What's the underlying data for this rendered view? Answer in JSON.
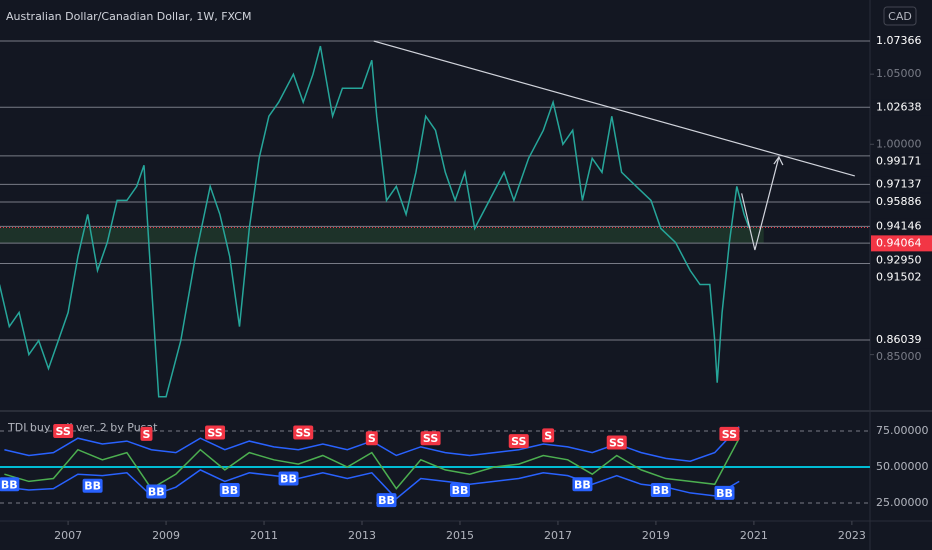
{
  "chart_data": [
    {
      "type": "line",
      "title": "Australian Dollar/Canadian Dollar, 1W, FXCM",
      "currency": "CAD",
      "color": "#26a69a",
      "x": [
        2005.6,
        2005.8,
        2006.0,
        2006.2,
        2006.4,
        2006.6,
        2006.8,
        2007.0,
        2007.2,
        2007.4,
        2007.6,
        2007.8,
        2008.0,
        2008.2,
        2008.4,
        2008.55,
        2008.7,
        2008.85,
        2009.0,
        2009.3,
        2009.6,
        2009.9,
        2010.1,
        2010.3,
        2010.5,
        2010.7,
        2010.9,
        2011.1,
        2011.3,
        2011.6,
        2011.8,
        2012.0,
        2012.15,
        2012.4,
        2012.6,
        2012.8,
        2013.0,
        2013.2,
        2013.3,
        2013.5,
        2013.7,
        2013.9,
        2014.1,
        2014.3,
        2014.5,
        2014.7,
        2014.9,
        2015.1,
        2015.3,
        2015.6,
        2015.9,
        2016.1,
        2016.4,
        2016.7,
        2016.9,
        2017.1,
        2017.3,
        2017.5,
        2017.7,
        2017.9,
        2018.1,
        2018.3,
        2018.6,
        2018.9,
        2019.1,
        2019.4,
        2019.7,
        2019.9,
        2020.1,
        2020.2,
        2020.25,
        2020.35,
        2020.5,
        2020.65,
        2020.8,
        2020.9
      ],
      "values": [
        0.9,
        0.87,
        0.88,
        0.85,
        0.86,
        0.84,
        0.86,
        0.88,
        0.92,
        0.95,
        0.91,
        0.93,
        0.96,
        0.96,
        0.97,
        0.985,
        0.9,
        0.82,
        0.82,
        0.86,
        0.92,
        0.97,
        0.95,
        0.92,
        0.87,
        0.94,
        0.99,
        1.02,
        1.03,
        1.05,
        1.03,
        1.05,
        1.07,
        1.02,
        1.04,
        1.04,
        1.04,
        1.06,
        1.02,
        0.96,
        0.97,
        0.95,
        0.98,
        1.02,
        1.01,
        0.98,
        0.96,
        0.98,
        0.94,
        0.96,
        0.98,
        0.96,
        0.99,
        1.01,
        1.03,
        1.0,
        1.01,
        0.96,
        0.99,
        0.98,
        1.02,
        0.98,
        0.97,
        0.96,
        0.94,
        0.93,
        0.91,
        0.9,
        0.9,
        0.86,
        0.83,
        0.88,
        0.93,
        0.97,
        0.95,
        0.94064
      ],
      "xlim": [
        2005.61,
        2023.37
      ],
      "xticks": [
        2007,
        2009,
        2011,
        2013,
        2015,
        2017,
        2019,
        2021,
        2023
      ],
      "ylim": [
        0.8105,
        1.1029
      ],
      "yticks": [
        {
          "value": 1.05,
          "label": "1.05000"
        },
        {
          "value": 1.0,
          "label": "1.00000"
        },
        {
          "value": 0.85,
          "label": "0.85000"
        }
      ],
      "levels": [
        1.07366,
        1.02638,
        0.99171,
        0.97137,
        0.95886,
        0.94146,
        {
          "value": 0.9295,
          "label": "0.92950"
        },
        0.91502,
        0.86039
      ],
      "current_price": {
        "value": 0.94064,
        "label": "0.94064",
        "color": "#f23645"
      },
      "zone": [
        0.9295,
        0.9406
      ],
      "trendline": {
        "x": [
          2013.24,
          2023.06
        ],
        "y": [
          1.0736,
          0.9774
        ]
      },
      "projection": {
        "x": [
          2020.75,
          2021.02,
          2021.51
        ],
        "y": [
          0.965,
          0.9246,
          0.9909
        ]
      }
    },
    {
      "type": "line",
      "title": "TDI buy sell ver. 2 by Pusat",
      "ylim": [
        13.2,
        88.2
      ],
      "yticks": [
        {
          "value": 75,
          "label": "75.00000"
        },
        {
          "value": 50,
          "label": "50.00000"
        },
        {
          "value": 25,
          "label": "25.00000"
        }
      ],
      "midline": {
        "value": 50,
        "color": "#00bcd4"
      },
      "x": [
        2005.7,
        2006.2,
        2006.7,
        2007.2,
        2007.7,
        2008.2,
        2008.7,
        2009.2,
        2009.7,
        2010.2,
        2010.7,
        2011.2,
        2011.7,
        2012.2,
        2012.7,
        2013.2,
        2013.7,
        2014.2,
        2014.7,
        2015.2,
        2015.7,
        2016.2,
        2016.7,
        2017.2,
        2017.7,
        2018.2,
        2018.7,
        2019.2,
        2019.7,
        2020.2,
        2020.7
      ],
      "series": [
        {
          "color": "#4caf50",
          "values": [
            45,
            40,
            42,
            62,
            55,
            60,
            35,
            45,
            62,
            48,
            60,
            55,
            52,
            58,
            50,
            60,
            35,
            55,
            48,
            45,
            50,
            52,
            58,
            55,
            45,
            58,
            48,
            42,
            40,
            38,
            70
          ]
        },
        {
          "color": "#2962ff",
          "values": [
            62,
            58,
            60,
            70,
            66,
            68,
            62,
            60,
            70,
            62,
            68,
            64,
            62,
            66,
            62,
            68,
            58,
            64,
            60,
            58,
            60,
            62,
            66,
            64,
            60,
            66,
            60,
            56,
            54,
            60,
            78
          ]
        },
        {
          "color": "#2962ff",
          "values": [
            36,
            34,
            35,
            45,
            44,
            46,
            30,
            36,
            48,
            40,
            46,
            44,
            42,
            46,
            42,
            46,
            28,
            42,
            40,
            38,
            40,
            42,
            46,
            44,
            38,
            44,
            38,
            36,
            32,
            30,
            40
          ]
        }
      ],
      "signals": [
        {
          "x": 2006.9,
          "y": 75,
          "label": "SS"
        },
        {
          "x": 2008.6,
          "y": 73,
          "label": "S"
        },
        {
          "x": 2010.0,
          "y": 74,
          "label": "SS"
        },
        {
          "x": 2011.8,
          "y": 74,
          "label": "SS"
        },
        {
          "x": 2013.2,
          "y": 70,
          "label": "S"
        },
        {
          "x": 2014.4,
          "y": 70,
          "label": "SS"
        },
        {
          "x": 2016.2,
          "y": 68,
          "label": "SS"
        },
        {
          "x": 2016.8,
          "y": 72,
          "label": "S"
        },
        {
          "x": 2018.2,
          "y": 67,
          "label": "SS"
        },
        {
          "x": 2020.5,
          "y": 73,
          "label": "SS"
        },
        {
          "x": 2005.8,
          "y": 38,
          "label": "BB"
        },
        {
          "x": 2007.5,
          "y": 37,
          "label": "BB"
        },
        {
          "x": 2008.8,
          "y": 33,
          "label": "BB"
        },
        {
          "x": 2010.3,
          "y": 34,
          "label": "BB"
        },
        {
          "x": 2011.5,
          "y": 42,
          "label": "BB"
        },
        {
          "x": 2013.5,
          "y": 27,
          "label": "BB"
        },
        {
          "x": 2015.0,
          "y": 34,
          "label": "BB"
        },
        {
          "x": 2017.5,
          "y": 38,
          "label": "BB"
        },
        {
          "x": 2019.1,
          "y": 34,
          "label": "BB"
        },
        {
          "x": 2020.4,
          "y": 32,
          "label": "BB"
        }
      ]
    }
  ]
}
